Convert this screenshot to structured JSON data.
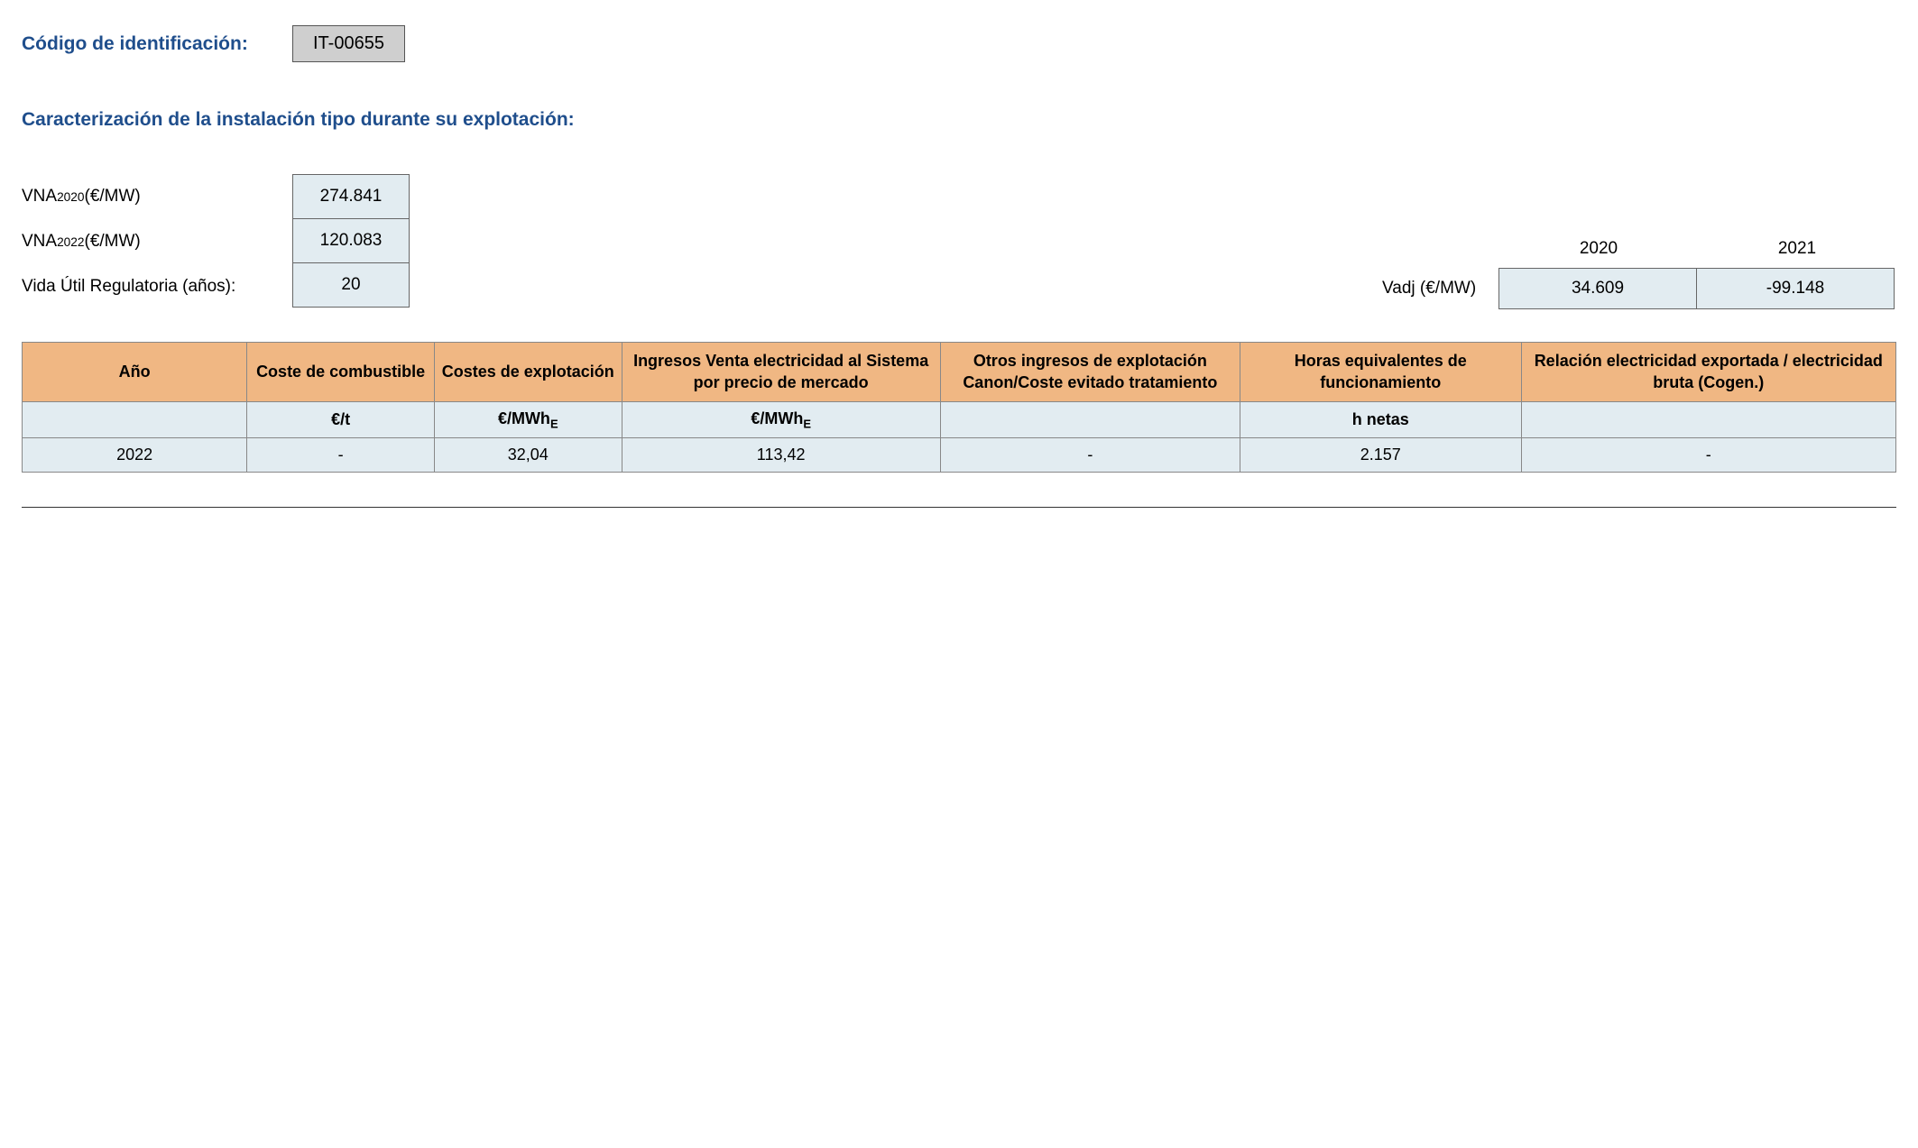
{
  "identification": {
    "label": "Código de identificación:",
    "code": "IT-00655"
  },
  "section_title": "Caracterización de la instalación tipo durante su explotación:",
  "params": {
    "vna_2020": {
      "label_prefix": "VNA",
      "label_sub": "2020",
      "label_suffix": " (€/MW)",
      "value": "274.841"
    },
    "vna_2022": {
      "label_prefix": "VNA",
      "label_sub": "2022",
      "label_suffix": " (€/MW)",
      "value": "120.083"
    },
    "vida_util": {
      "label": "Vida Útil Regulatoria (años):",
      "value": "20"
    }
  },
  "vadj": {
    "label": "Vadj (€/MW)",
    "years": [
      "2020",
      "2021"
    ],
    "values": [
      "34.609",
      "-99.148"
    ]
  },
  "table": {
    "header_bg": "#f0b783",
    "cell_bg": "#e2ecf1",
    "border_color": "#888888",
    "columns": [
      "Año",
      "Coste de combustible",
      "Costes de explotación",
      "Ingresos Venta electricidad al Sistema por precio de mercado",
      "Otros ingresos de explotación Canon/Coste evitado tratamiento",
      "Horas equivalentes de funcionamiento",
      "Relación electricidad exportada / electricidad bruta (Cogen.)"
    ],
    "units": [
      "",
      "€/t",
      "€/MWh",
      "€/MWh",
      "",
      "h netas",
      ""
    ],
    "units_sub": [
      "",
      "",
      "E",
      "E",
      "",
      "",
      ""
    ],
    "rows": [
      [
        "2022",
        "-",
        "32,04",
        "113,42",
        "-",
        "2.157",
        "-"
      ]
    ]
  },
  "colors": {
    "heading": "#1f4e8c",
    "code_box_bg": "#cfcfcf",
    "value_box_bg": "#e2ecf1",
    "background": "#ffffff"
  }
}
